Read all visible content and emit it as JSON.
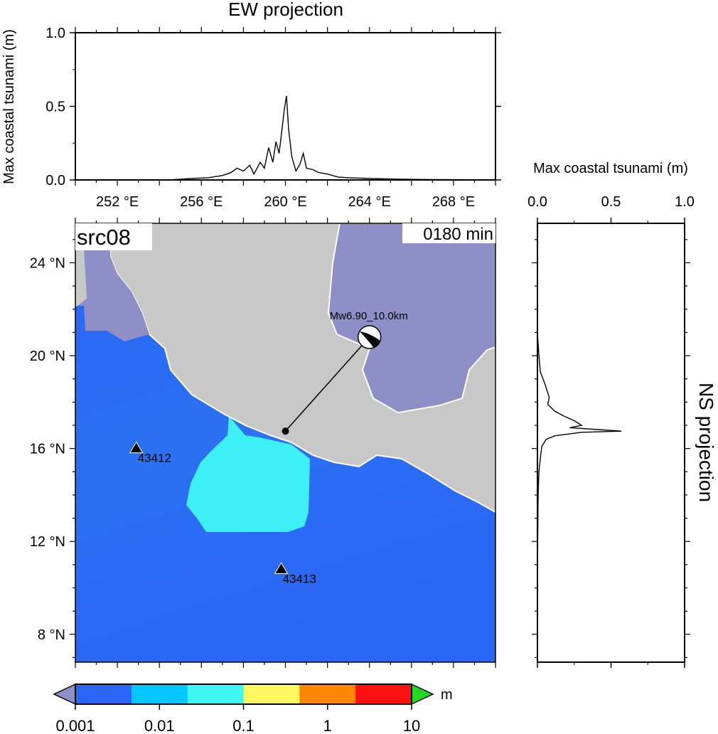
{
  "colors": {
    "land": "#c8c8c8",
    "dry_sea": "#8f8fc8",
    "deep": "#2a66f5",
    "light": "#3ef7f5"
  },
  "chart_data": [
    {
      "type": "line",
      "title": "EW projection",
      "ylabel": "Max coastal tsunami (m)",
      "xlim": [
        250,
        270
      ],
      "ylim": [
        0,
        1.0
      ],
      "x_ticks": [
        252,
        256,
        260,
        264,
        268
      ],
      "x_tick_labels": [
        "252 °E",
        "256 °E",
        "260 °E",
        "264 °E",
        "268 °E"
      ],
      "y_ticks": [
        0,
        0.5,
        1.0
      ],
      "y_tick_labels": [
        "0.0",
        "0.5",
        "1.0"
      ],
      "x": [
        254.5,
        255.5,
        256.3,
        257.0,
        257.4,
        257.7,
        258.0,
        258.3,
        258.5,
        258.8,
        259.0,
        259.2,
        259.4,
        259.55,
        259.7,
        259.8,
        259.95,
        260.05,
        260.15,
        260.3,
        260.5,
        260.7,
        260.85,
        261.0,
        261.3,
        261.6,
        262.0,
        262.5,
        263.0,
        264.0,
        265.5,
        267.0,
        268.5
      ],
      "y": [
        0.0,
        0.01,
        0.015,
        0.03,
        0.05,
        0.08,
        0.06,
        0.1,
        0.04,
        0.12,
        0.08,
        0.22,
        0.12,
        0.26,
        0.18,
        0.3,
        0.48,
        0.57,
        0.35,
        0.16,
        0.06,
        0.11,
        0.18,
        0.08,
        0.07,
        0.05,
        0.04,
        0.02,
        0.015,
        0.01,
        0.005,
        0.003,
        0.002
      ]
    },
    {
      "type": "line",
      "title": "NS projection",
      "xlabel": "Max coastal tsunami (m)",
      "xlim": [
        0,
        1.0
      ],
      "ylim": [
        6.8,
        25.7
      ],
      "x_ticks": [
        0,
        0.5,
        1.0
      ],
      "x_tick_labels": [
        "0.0",
        "0.5",
        "1.0"
      ],
      "lat": [
        23.5,
        21.0,
        20.0,
        19.3,
        18.8,
        18.2,
        17.9,
        17.6,
        17.4,
        17.2,
        17.0,
        16.9,
        16.8,
        16.75,
        16.7,
        16.55,
        16.4,
        16.1,
        15.6,
        15.0,
        14.0,
        12.0,
        10.0
      ],
      "height": [
        0.0,
        0.0,
        0.01,
        0.02,
        0.05,
        0.08,
        0.07,
        0.12,
        0.18,
        0.25,
        0.3,
        0.22,
        0.45,
        0.57,
        0.3,
        0.12,
        0.06,
        0.03,
        0.02,
        0.01,
        0.005,
        0.002,
        0.0
      ]
    },
    {
      "type": "heatmap",
      "panel_label": "src08",
      "time_label": "0180 min",
      "xlim": [
        250,
        270
      ],
      "ylim": [
        6.8,
        25.7
      ],
      "y_ticks": [
        8,
        12,
        16,
        20,
        24
      ],
      "y_tick_labels": [
        "8 °N",
        "12 °N",
        "16 °N",
        "20 °N",
        "24 °N"
      ],
      "epicenter": {
        "lon": 264.0,
        "lat": 20.8,
        "label": "Mw6.90_10.0km"
      },
      "source": {
        "lon": 260.0,
        "lat": 16.75
      },
      "stations": [
        {
          "id": "43412",
          "lon": 252.9,
          "lat": 16.0
        },
        {
          "id": "43413",
          "lon": 259.8,
          "lat": 10.8
        }
      ],
      "colorbar": {
        "unit": "m",
        "tick_labels": [
          "0.001",
          "0.01",
          "0.1",
          "1",
          "10"
        ],
        "segments": [
          "#2a66f5",
          "#00c8ff",
          "#3ef7f5",
          "#fff860",
          "#ff8800",
          "#ff1010"
        ],
        "under_color": "#8f8fc8",
        "over_color": "#22d820"
      }
    }
  ]
}
